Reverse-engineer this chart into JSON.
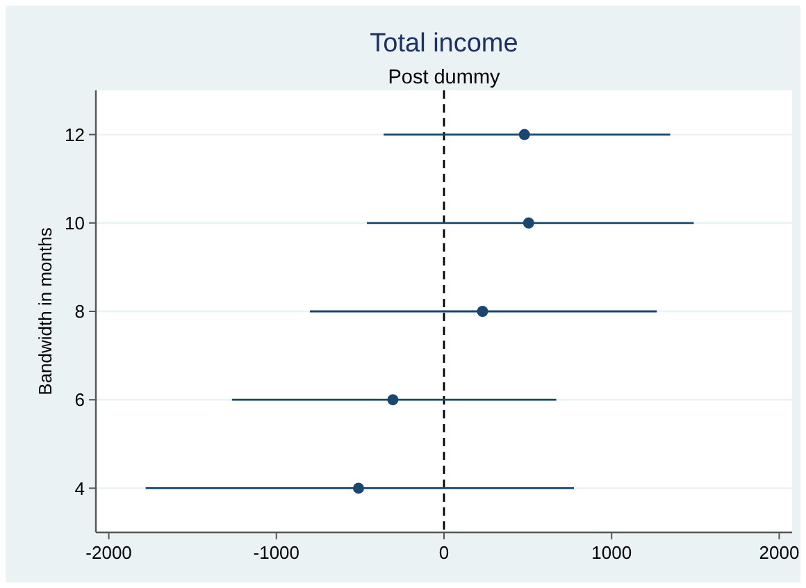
{
  "chart_data": {
    "type": "scatter",
    "title": "Total income",
    "subtitle": "Post dummy",
    "ylabel": "Bandwidth in months",
    "x": [
      480,
      505,
      230,
      -305,
      -510
    ],
    "values": [
      12,
      10,
      8,
      6,
      4
    ],
    "xerrors": [
      [
        -360,
        1350
      ],
      [
        -460,
        1490
      ],
      [
        -800,
        1270
      ],
      [
        -1265,
        670
      ],
      [
        -1780,
        775
      ]
    ],
    "color": "#1a476f",
    "marker": "circle",
    "xlim": [
      -2077,
      2077
    ],
    "xticks": [
      -2000,
      -1000,
      0,
      1000,
      2000
    ],
    "ylim": [
      3,
      13
    ],
    "yticks": [
      4,
      6,
      8,
      10,
      12
    ],
    "grid": "y",
    "ref_lines": [
      {
        "axis": "x",
        "value": 0,
        "color": "#000000",
        "line_style": "dashed"
      }
    ]
  }
}
